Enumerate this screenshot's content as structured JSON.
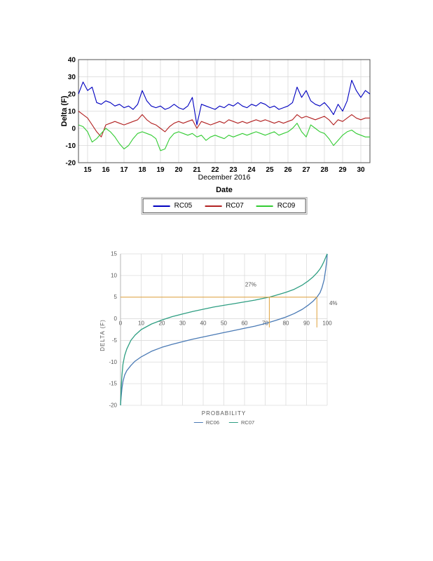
{
  "accent_colors": {
    "rc05_blue": "#0000c0",
    "rc07_red": "#b22222",
    "rc09_green": "#33cc33",
    "cdf_blue": "#4a7ab5",
    "cdf_green": "#2e9e82",
    "annotation_orange": "#dfa13a"
  },
  "chart_data": [
    {
      "type": "line",
      "title": "",
      "ylabel": "Delta (F)",
      "xlabel": "Date",
      "x_sublabel": "December 2016",
      "xlim": [
        14.5,
        30.5
      ],
      "ylim": [
        -20,
        40
      ],
      "x_ticks": [
        15,
        16,
        17,
        18,
        19,
        20,
        21,
        22,
        23,
        24,
        25,
        26,
        27,
        28,
        29,
        30
      ],
      "y_ticks": [
        -20,
        -10,
        0,
        10,
        20,
        30,
        40
      ],
      "grid": true,
      "legend_position": "bottom",
      "x_start": 14.5,
      "x_step": 0.25,
      "series": [
        {
          "name": "RC05",
          "color": "#0000c0",
          "values": [
            20,
            27,
            22,
            24,
            15,
            14,
            16,
            15,
            13,
            14,
            12,
            13,
            11,
            14,
            22,
            16,
            13,
            12,
            13,
            11,
            12,
            14,
            12,
            11,
            13,
            18,
            2,
            14,
            13,
            12,
            11,
            13,
            12,
            14,
            13,
            15,
            13,
            12,
            14,
            13,
            15,
            14,
            12,
            13,
            11,
            12,
            13,
            15,
            24,
            18,
            22,
            16,
            14,
            13,
            15,
            12,
            8,
            14,
            10,
            16,
            28,
            22,
            18,
            22,
            20
          ]
        },
        {
          "name": "RC07",
          "color": "#b22222",
          "values": [
            10,
            8,
            6,
            2,
            -2,
            -5,
            2,
            3,
            4,
            3,
            2,
            3,
            4,
            5,
            8,
            5,
            3,
            2,
            0,
            -2,
            1,
            3,
            4,
            3,
            4,
            5,
            0,
            4,
            3,
            2,
            3,
            4,
            3,
            5,
            4,
            3,
            4,
            3,
            4,
            5,
            4,
            5,
            4,
            3,
            4,
            3,
            4,
            5,
            8,
            6,
            7,
            6,
            5,
            6,
            7,
            5,
            2,
            5,
            4,
            6,
            8,
            6,
            5,
            6,
            6
          ]
        },
        {
          "name": "RC09",
          "color": "#33cc33",
          "values": [
            2,
            1,
            -2,
            -8,
            -6,
            -3,
            0,
            -2,
            -5,
            -9,
            -12,
            -10,
            -6,
            -3,
            -2,
            -3,
            -4,
            -6,
            -13,
            -12,
            -6,
            -3,
            -2,
            -3,
            -4,
            -3,
            -5,
            -4,
            -7,
            -5,
            -4,
            -5,
            -6,
            -4,
            -5,
            -4,
            -3,
            -4,
            -3,
            -2,
            -3,
            -4,
            -3,
            -2,
            -4,
            -3,
            -2,
            0,
            3,
            -2,
            -5,
            2,
            0,
            -2,
            -3,
            -6,
            -10,
            -7,
            -4,
            -2,
            -1,
            -3,
            -4,
            -5,
            -5
          ]
        }
      ]
    },
    {
      "type": "line",
      "title": "",
      "ylabel": "DELTA (F)",
      "xlabel": "PROBABILITY",
      "xlim": [
        0,
        100
      ],
      "ylim": [
        -20,
        15
      ],
      "x_ticks": [
        0,
        10,
        20,
        30,
        40,
        50,
        60,
        70,
        80,
        90,
        100
      ],
      "y_ticks": [
        -20,
        -15,
        -10,
        -5,
        0,
        5,
        10,
        15
      ],
      "grid": true,
      "legend_position": "bottom",
      "series": [
        {
          "name": "RC06",
          "color": "#4a7ab5",
          "points": [
            [
              0,
              -20
            ],
            [
              0.3,
              -18
            ],
            [
              0.7,
              -16
            ],
            [
              1.2,
              -14.5
            ],
            [
              2,
              -13
            ],
            [
              3,
              -12
            ],
            [
              5,
              -10.8
            ],
            [
              7,
              -9.8
            ],
            [
              10,
              -8.8
            ],
            [
              15,
              -7.5
            ],
            [
              20,
              -6.6
            ],
            [
              25,
              -5.9
            ],
            [
              30,
              -5.3
            ],
            [
              35,
              -4.7
            ],
            [
              40,
              -4.2
            ],
            [
              45,
              -3.7
            ],
            [
              50,
              -3.2
            ],
            [
              55,
              -2.7
            ],
            [
              60,
              -2.2
            ],
            [
              65,
              -1.7
            ],
            [
              70,
              -1.1
            ],
            [
              75,
              -0.4
            ],
            [
              80,
              0.4
            ],
            [
              84,
              1.2
            ],
            [
              88,
              2.2
            ],
            [
              91,
              3.2
            ],
            [
              93,
              4
            ],
            [
              95,
              5
            ],
            [
              96.5,
              6
            ],
            [
              97.5,
              7.2
            ],
            [
              98.5,
              9
            ],
            [
              99.3,
              11.5
            ],
            [
              99.8,
              13.5
            ],
            [
              100,
              15
            ]
          ]
        },
        {
          "name": "RC07",
          "color": "#2e9e82",
          "points": [
            [
              0,
              -20
            ],
            [
              0.3,
              -16
            ],
            [
              0.7,
              -13
            ],
            [
              1.2,
              -10.5
            ],
            [
              2,
              -8.5
            ],
            [
              3,
              -7
            ],
            [
              5,
              -5
            ],
            [
              7,
              -3.8
            ],
            [
              10,
              -2.5
            ],
            [
              15,
              -1.2
            ],
            [
              20,
              -0.3
            ],
            [
              25,
              0.5
            ],
            [
              30,
              1.1
            ],
            [
              35,
              1.7
            ],
            [
              40,
              2.2
            ],
            [
              45,
              2.7
            ],
            [
              50,
              3.1
            ],
            [
              55,
              3.5
            ],
            [
              60,
              3.9
            ],
            [
              65,
              4.3
            ],
            [
              70,
              4.8
            ],
            [
              72,
              5
            ],
            [
              75,
              5.4
            ],
            [
              80,
              6.1
            ],
            [
              84,
              6.8
            ],
            [
              88,
              7.8
            ],
            [
              91,
              8.8
            ],
            [
              93,
              9.6
            ],
            [
              95,
              10.6
            ],
            [
              96.5,
              11.5
            ],
            [
              97.5,
              12.3
            ],
            [
              98.5,
              13.3
            ],
            [
              99.3,
              14.2
            ],
            [
              100,
              15
            ]
          ]
        }
      ],
      "annotations": {
        "color": "#dfa13a",
        "hline_y": 5,
        "hline_x_range": [
          0,
          95
        ],
        "vlines": [
          {
            "x": 72,
            "y_from": 5,
            "y_to": -2
          },
          {
            "x": 95,
            "y_from": 5,
            "y_to": -2
          }
        ],
        "labels": [
          {
            "text": "27%",
            "x": 63,
            "y": 7.5,
            "anchor": "middle"
          },
          {
            "text": "4%",
            "x": 101,
            "y": 3.2,
            "anchor": "start"
          }
        ]
      }
    }
  ]
}
